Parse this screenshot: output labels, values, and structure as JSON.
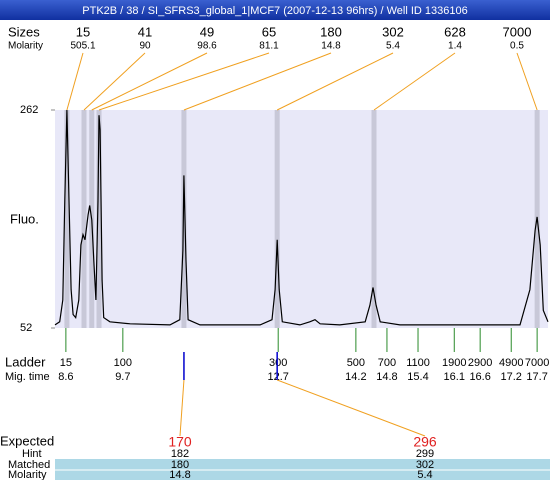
{
  "chart_data": {
    "type": "line",
    "title": "PTK2B / 38 / SI_SFRS3_global_1|MCF7 (2007-12-13 96hrs) / Well ID 1336106",
    "ylabel": "Fluo.",
    "ylim": [
      52,
      262
    ],
    "yticks": [
      52,
      262
    ],
    "xlim": [
      8.39,
      17.91
    ],
    "xticks": [
      8.6,
      9.7,
      12.7,
      14.2,
      14.8,
      15.4,
      16.1,
      16.6,
      17.2,
      17.7
    ],
    "color": "#000000",
    "x": [
      8.39,
      8.48,
      8.54,
      8.58,
      8.62,
      8.66,
      8.7,
      8.74,
      8.79,
      8.85,
      8.89,
      8.93,
      8.97,
      9.03,
      9.06,
      9.1,
      9.14,
      9.18,
      9.22,
      9.24,
      9.26,
      9.3,
      9.33,
      9.45,
      9.84,
      10.61,
      10.8,
      10.86,
      10.88,
      10.92,
      10.96,
      11.19,
      12.35,
      12.58,
      12.64,
      12.68,
      12.72,
      12.78,
      13.12,
      13.31,
      13.41,
      13.51,
      13.89,
      14.38,
      14.47,
      14.53,
      14.59,
      14.67,
      15.05,
      17.37,
      17.56,
      17.66,
      17.7,
      17.76,
      17.82,
      17.91
    ],
    "values": [
      55,
      58,
      79,
      175,
      262,
      175,
      89,
      65,
      62,
      79,
      132,
      142,
      137,
      161,
      170,
      156,
      117,
      79,
      175,
      257,
      243,
      98,
      62,
      58,
      56,
      55,
      60,
      127,
      199,
      117,
      60,
      55,
      55,
      60,
      89,
      137,
      89,
      58,
      55,
      58,
      60,
      56,
      55,
      58,
      74,
      91,
      74,
      58,
      55,
      55,
      89,
      146,
      159,
      132,
      69,
      58
    ],
    "peaks": {
      "label": "Sizes",
      "molarity_label": "Molarity",
      "sizes": [
        15,
        41,
        49,
        65,
        180,
        302,
        628,
        7000
      ],
      "molarity": [
        505.1,
        90,
        98.6,
        81.1,
        14.8,
        5.4,
        1.4,
        0.5
      ],
      "times": [
        8.62,
        8.95,
        9.1,
        9.24,
        10.88,
        12.68,
        14.55,
        17.7
      ]
    },
    "ladder": {
      "label": "Ladder",
      "time_label": "Mig. time",
      "sizes": [
        15,
        100,
        300,
        500,
        700,
        1100,
        1900,
        2900,
        4900,
        7000
      ]
    },
    "expected": {
      "label": "Expected",
      "hint_label": "Hint",
      "matched_label": "Matched",
      "molarity_label": "Molarity",
      "targets": [
        170,
        296
      ],
      "hint": [
        182,
        299
      ],
      "matched": [
        180,
        302
      ],
      "molarity": [
        14.8,
        5.4
      ]
    }
  }
}
